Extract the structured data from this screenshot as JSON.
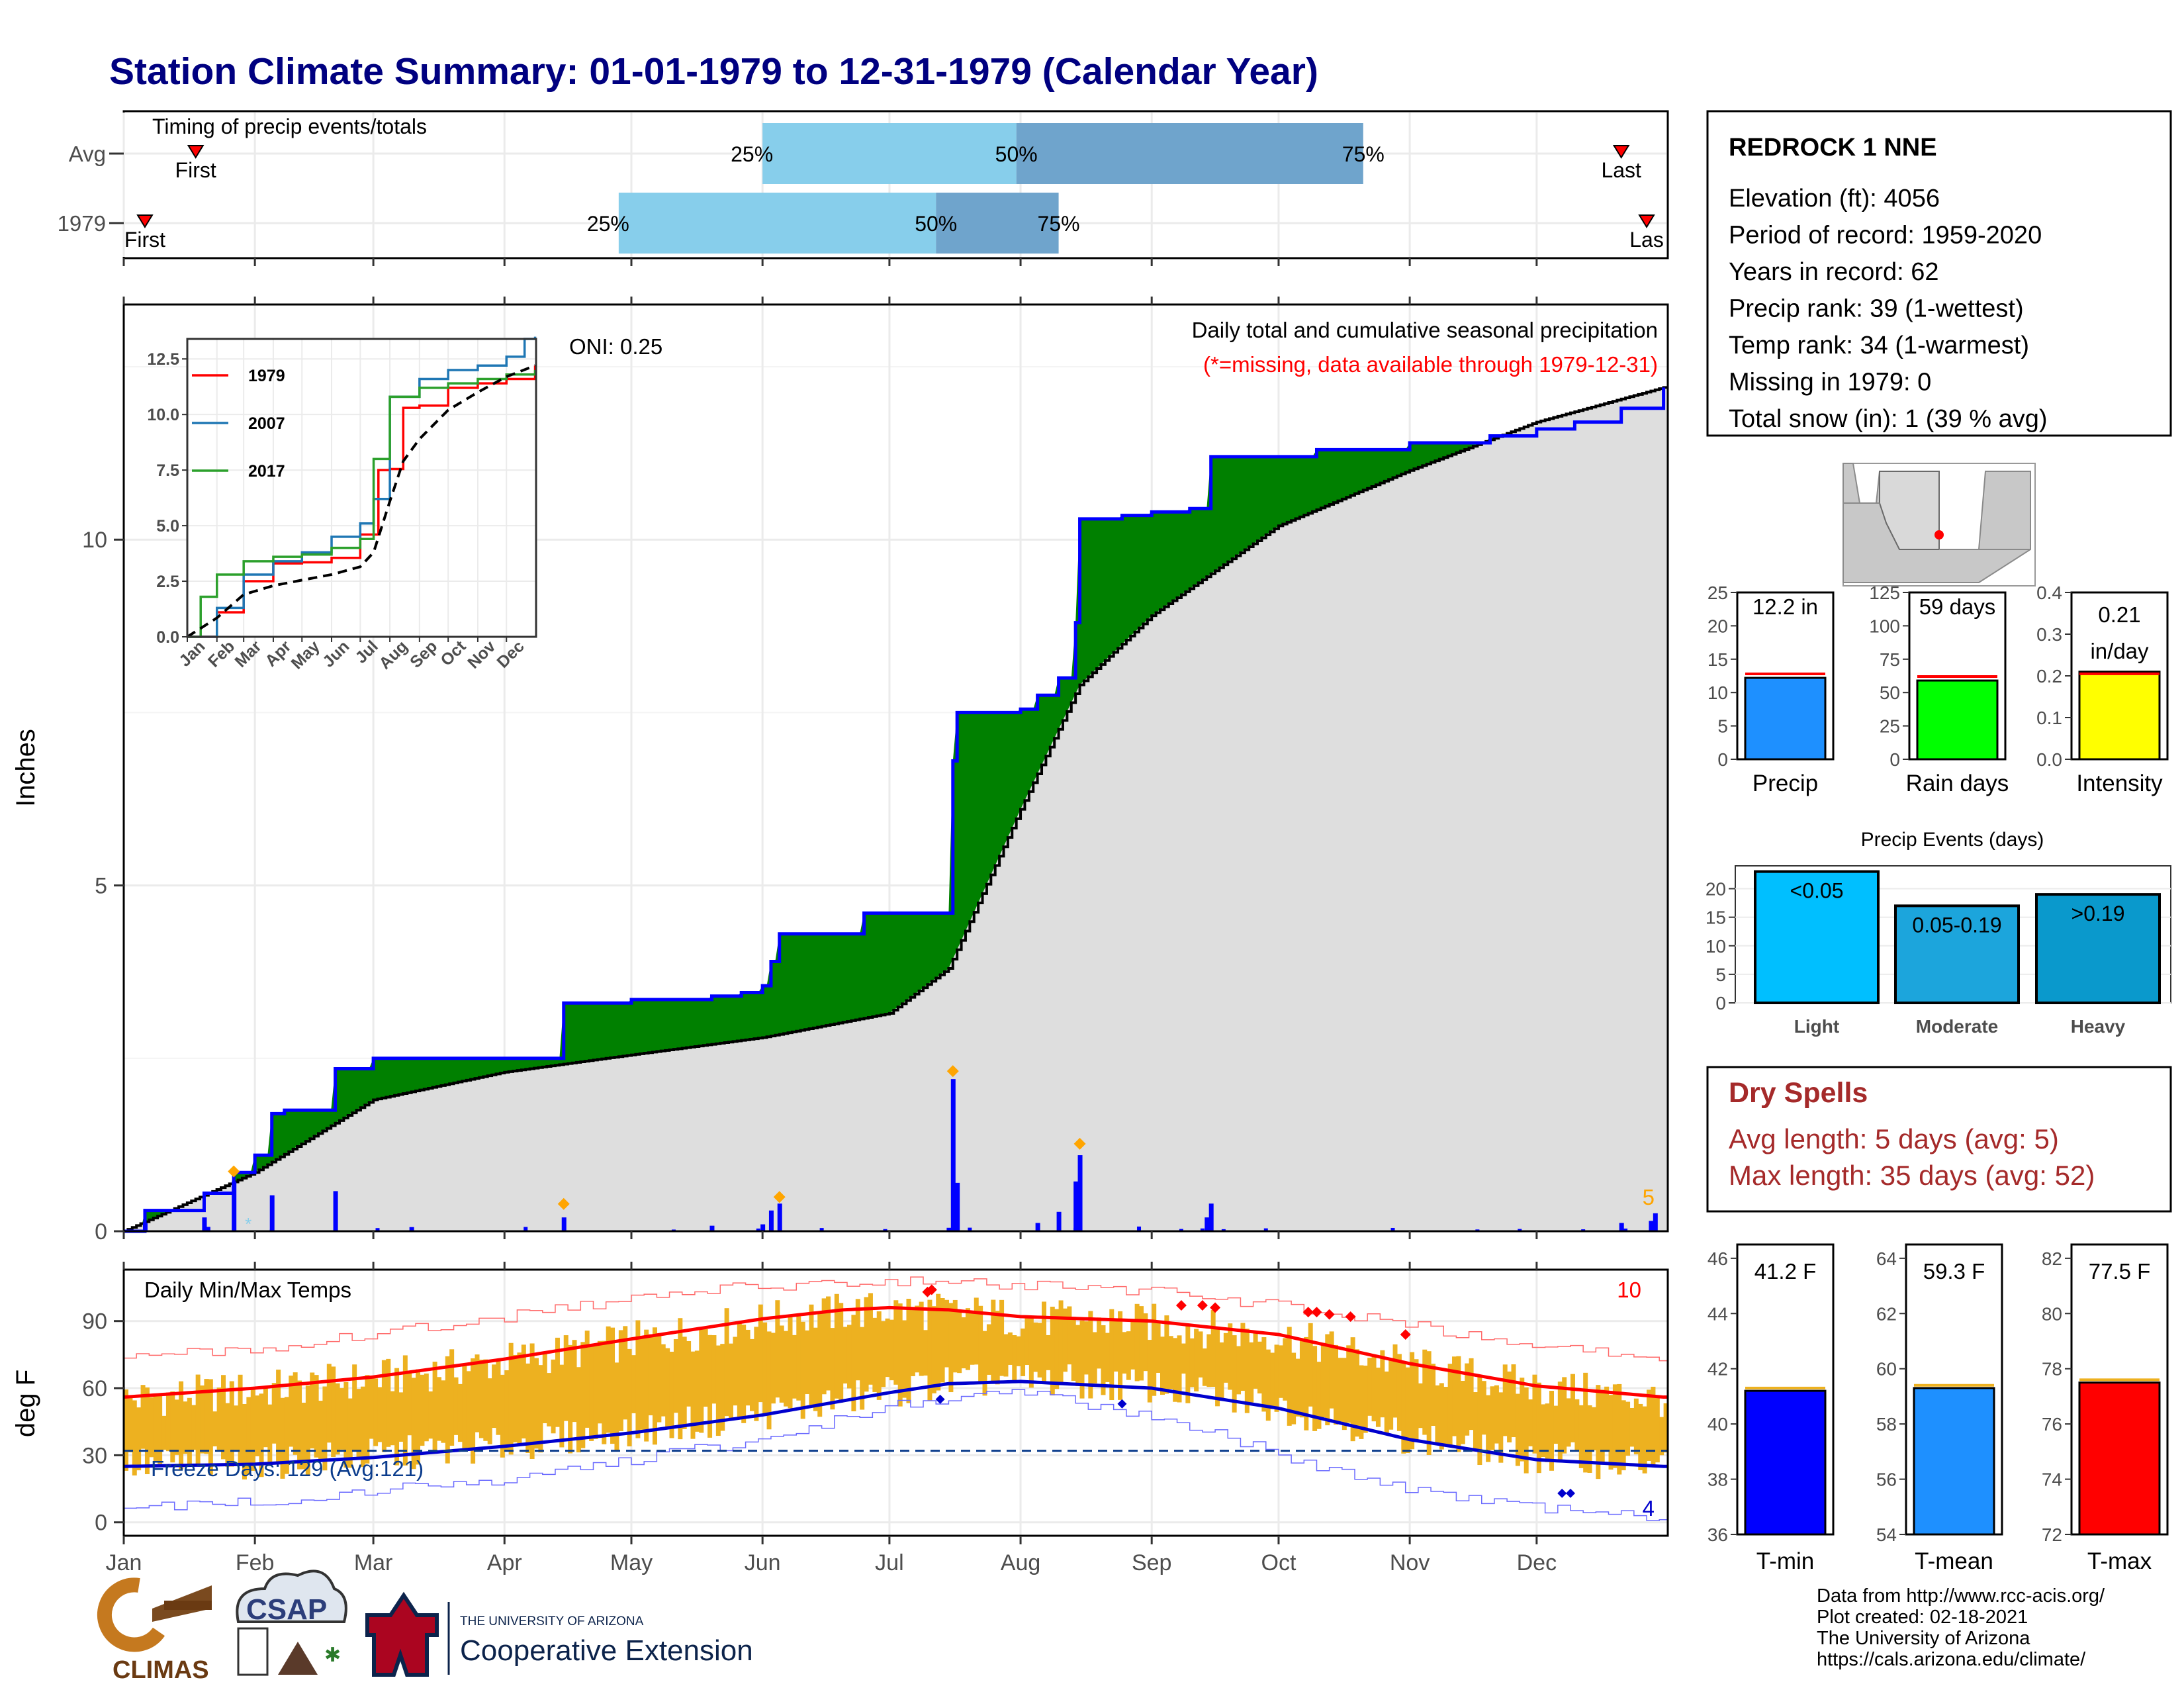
{
  "title": "Station Climate Summary: 01-01-1979 to 12-31-1979 (Calendar Year)",
  "colors": {
    "title": "#000080",
    "fill_above": "#008000",
    "fill_below": "#8B5A1A",
    "cum_line": "#0000FF",
    "grey_fill": "#DEDEDE",
    "daily_bar": "#0000FF",
    "marker": "#FFA500",
    "temp_bar": "#EDB120",
    "tmax_avg": "#FF0000",
    "tmin_avg": "#0000CD",
    "quartile_light": "#87CEEB",
    "quartile_dark": "#6FA4CC",
    "missing_text": "#FF0000",
    "dry_spell": "#A52A2A",
    "precip_bar": "#1E90FF",
    "rain_days_bar": "#00FF00",
    "intensity_bar": "#FFFF00",
    "light": "#00BFFF",
    "moderate": "#1CA5DC",
    "heavy": "#0A99CC",
    "tmin_bar": "#0000FF",
    "tmean_bar": "#1E90FF",
    "tmax_bar": "#FF0000"
  },
  "timing": {
    "label": "Timing of precip events/totals",
    "rows": [
      {
        "name": "Avg",
        "first_label": "First",
        "last_label": "Last",
        "q25": "2000-06-01",
        "q50": "2000-07-31",
        "q75": "2000-10-21",
        "first": "2000-01-18",
        "last": "2000-12-21"
      },
      {
        "name": "1979",
        "first_label": "First",
        "last_label": "Las",
        "q25": "2000-04-28",
        "q50": "2000-07-12",
        "q75": "2000-08-10",
        "first": "2000-01-06",
        "last": "2000-12-27"
      }
    ],
    "q25_label": "25%",
    "q50_label": "50%",
    "q75_label": "75%"
  },
  "precip_panel": {
    "ylabel": "Inches",
    "oni": "ONI: 0.25",
    "title": "Daily total and cumulative seasonal precipitation",
    "missing_note": "(*=missing, data available through 1979-12-31)",
    "count_label": "5",
    "yticks": [
      "0",
      "5",
      "10"
    ]
  },
  "inset": {
    "yticks": [
      "0.0",
      "2.5",
      "5.0",
      "7.5",
      "10.0",
      "12.5"
    ],
    "months": [
      "Jan",
      "Feb",
      "Mar",
      "Apr",
      "May",
      "Jun",
      "Jul",
      "Aug",
      "Sep",
      "Oct",
      "Nov",
      "Dec"
    ],
    "legend": [
      {
        "name": "1979",
        "color": "#FF0000"
      },
      {
        "name": "2007",
        "color": "#1F77B4"
      },
      {
        "name": "2017",
        "color": "#2CA02C"
      }
    ]
  },
  "temp_panel": {
    "ylabel": "deg F",
    "title": "Daily Min/Max Temps",
    "freeze": "Freeze Days: 129 (Avg:121)",
    "count_max": "10",
    "count_min": "4",
    "yticks": [
      "0",
      "30",
      "60",
      "90"
    ]
  },
  "months": [
    "Jan",
    "Feb",
    "Mar",
    "Apr",
    "May",
    "Jun",
    "Jul",
    "Aug",
    "Sep",
    "Oct",
    "Nov",
    "Dec"
  ],
  "station": {
    "name": "REDROCK 1 NNE",
    "lines": [
      "Elevation (ft): 4056",
      "Period of record: 1959-2020",
      "Years in record: 62",
      "Precip rank: 39 (1-wettest)",
      "Temp rank: 34 (1-warmest)",
      "Missing in 1979: 0",
      "Total snow (in): 1 (39 % avg)"
    ]
  },
  "mini_bars": [
    {
      "label": "Precip",
      "value": 12.2,
      "avg": 12.8,
      "text1": "12.2 in",
      "text2": "",
      "ymax": 25,
      "yticks": [
        "0",
        "5",
        "10",
        "15",
        "20",
        "25"
      ],
      "tickvals": [
        0,
        5,
        10,
        15,
        20,
        25
      ],
      "color": "#1E90FF"
    },
    {
      "label": "Rain days",
      "value": 59,
      "avg": 62,
      "text1": "59 days",
      "text2": "",
      "ymax": 125,
      "yticks": [
        "0",
        "25",
        "50",
        "75",
        "100",
        "125"
      ],
      "tickvals": [
        0,
        25,
        50,
        75,
        100,
        125
      ],
      "color": "#00FF00"
    },
    {
      "label": "Intensity",
      "value": 0.21,
      "avg": 0.205,
      "text1": "0.21",
      "text2": "in/day",
      "ymax": 0.4,
      "yticks": [
        "0.0",
        "0.1",
        "0.2",
        "0.3",
        "0.4"
      ],
      "tickvals": [
        0,
        0.1,
        0.2,
        0.3,
        0.4
      ],
      "color": "#FFFF00"
    }
  ],
  "events": {
    "title": "Precip Events (days)",
    "yticks": [
      "0",
      "5",
      "10",
      "15",
      "20"
    ],
    "bars": [
      {
        "label": "Light",
        "text": "<0.05",
        "value": 23,
        "color": "#00BFFF"
      },
      {
        "label": "Moderate",
        "text": "0.05-0.19",
        "value": 17,
        "color": "#1CA5DC"
      },
      {
        "label": "Heavy",
        "text": ">0.19",
        "value": 19,
        "color": "#0A99CC"
      }
    ]
  },
  "dry_spells": {
    "title": "Dry Spells",
    "avg": "Avg length: 5 days (avg: 5)",
    "max": "Max length: 35 days (avg: 52)"
  },
  "temp_bars": [
    {
      "label": "T-min",
      "value": 41.2,
      "avg": 41.3,
      "text": "41.2 F",
      "ymin": 36,
      "ymax": 46.5,
      "yticks": [
        "36",
        "38",
        "40",
        "42",
        "44",
        "46"
      ],
      "tickvals": [
        36,
        38,
        40,
        42,
        44,
        46
      ],
      "color": "#0000FF"
    },
    {
      "label": "T-mean",
      "value": 59.3,
      "avg": 59.4,
      "text": "59.3 F",
      "ymin": 54,
      "ymax": 64.5,
      "yticks": [
        "54",
        "56",
        "58",
        "60",
        "62",
        "64"
      ],
      "tickvals": [
        54,
        56,
        58,
        60,
        62,
        64
      ],
      "color": "#1E90FF"
    },
    {
      "label": "T-max",
      "value": 77.5,
      "avg": 77.6,
      "text": "77.5 F",
      "ymin": 72,
      "ymax": 82.5,
      "yticks": [
        "72",
        "74",
        "76",
        "78",
        "80",
        "82"
      ],
      "tickvals": [
        72,
        74,
        76,
        78,
        80,
        82
      ],
      "color": "#FF0000"
    }
  ],
  "footer": {
    "lines": [
      "Data from http://www.rcc-acis.org/",
      "Plot created: 02-18-2021",
      "The University of Arizona",
      "https://cals.arizona.edu/climate/"
    ],
    "logo_climas": "CLIMAS",
    "logo_csap": "CSAP",
    "ua_small": "THE UNIVERSITY OF ARIZONA",
    "ua_big": "Cooperative Extension"
  },
  "chart_data": [
    {
      "type": "area",
      "title": "Daily total and cumulative seasonal precipitation",
      "ylabel": "Inches",
      "ylim": [
        0,
        13.4
      ],
      "series": [
        {
          "name": "1979",
          "x": [
            "01-01",
            "01-06",
            "01-20",
            "01-27",
            "02-01",
            "02-05",
            "02-08",
            "02-20",
            "03-01",
            "04-15",
            "05-01",
            "05-20",
            "05-27",
            "06-01",
            "06-03",
            "06-05",
            "06-12",
            "06-25",
            "07-15",
            "07-16",
            "07-17",
            "07-25",
            "08-01",
            "08-05",
            "08-10",
            "08-14",
            "08-15",
            "08-25",
            "09-01",
            "09-10",
            "09-15",
            "10-01",
            "10-10",
            "11-01",
            "11-20",
            "12-01",
            "12-10",
            "12-21",
            "12-31"
          ],
          "values": [
            0,
            0.3,
            0.55,
            0.85,
            1.1,
            1.7,
            1.75,
            2.35,
            2.5,
            3.3,
            3.35,
            3.4,
            3.45,
            3.55,
            3.9,
            4.3,
            4.3,
            4.6,
            4.6,
            6.8,
            7.5,
            7.5,
            7.55,
            7.75,
            8.0,
            8.8,
            10.3,
            10.35,
            10.4,
            10.45,
            11.2,
            11.2,
            11.3,
            11.4,
            11.5,
            11.6,
            11.7,
            11.9,
            12.2
          ]
        },
        {
          "name": "Average",
          "x": [
            "01-01",
            "02-01",
            "03-01",
            "04-01",
            "05-01",
            "06-01",
            "07-01",
            "07-15",
            "08-01",
            "08-15",
            "09-01",
            "10-01",
            "11-01",
            "12-01",
            "12-31"
          ],
          "values": [
            0,
            0.85,
            1.9,
            2.3,
            2.55,
            2.8,
            3.15,
            3.8,
            6.1,
            7.9,
            8.9,
            10.2,
            11.0,
            11.7,
            12.2
          ]
        }
      ],
      "daily_totals": {
        "x": [
          "01-06",
          "01-20",
          "01-27",
          "02-05",
          "02-20",
          "03-10",
          "04-15",
          "05-20",
          "06-01",
          "06-03",
          "06-05",
          "07-15",
          "07-16",
          "07-17",
          "08-05",
          "08-10",
          "08-14",
          "08-15",
          "09-14",
          "09-15",
          "12-21",
          "12-28",
          "12-29"
        ],
        "values": [
          0.12,
          0.2,
          0.72,
          0.52,
          0.58,
          0.06,
          0.2,
          0.08,
          0.1,
          0.3,
          0.4,
          0.05,
          2.2,
          0.7,
          0.12,
          0.28,
          0.72,
          1.1,
          0.2,
          0.4,
          0.12,
          0.15,
          0.26
        ]
      }
    },
    {
      "type": "line",
      "title": "",
      "months": [
        "Jan",
        "Feb",
        "Mar",
        "Apr",
        "May",
        "Jun",
        "Jul",
        "Aug",
        "Sep",
        "Oct",
        "Nov",
        "Dec"
      ],
      "series": [
        {
          "name": "1979",
          "x": [
            "01-01",
            "02-01",
            "03-01",
            "04-01",
            "05-01",
            "06-01",
            "07-01",
            "07-15",
            "07-20",
            "08-01",
            "08-15",
            "09-01",
            "10-01",
            "11-01",
            "12-01",
            "12-31"
          ],
          "values": [
            0,
            1.1,
            2.5,
            3.3,
            3.35,
            3.55,
            4.6,
            4.6,
            7.5,
            7.55,
            10.3,
            10.4,
            11.2,
            11.4,
            11.6,
            12.2
          ]
        },
        {
          "name": "2007",
          "x": [
            "01-01",
            "02-01",
            "03-01",
            "04-01",
            "05-01",
            "06-01",
            "07-01",
            "07-15",
            "08-01",
            "09-01",
            "10-01",
            "11-01",
            "12-01",
            "12-20",
            "12-31"
          ],
          "values": [
            0,
            1.3,
            2.8,
            3.4,
            3.8,
            4.5,
            5.1,
            6.2,
            10.8,
            11.6,
            12.0,
            12.2,
            12.6,
            13.4,
            13.5
          ]
        },
        {
          "name": "2017",
          "x": [
            "01-01",
            "01-15",
            "02-01",
            "03-01",
            "04-01",
            "05-01",
            "06-01",
            "07-01",
            "07-15",
            "08-01",
            "09-01",
            "10-01",
            "11-01",
            "12-01",
            "12-31"
          ],
          "values": [
            0,
            1.8,
            2.8,
            3.4,
            3.6,
            3.7,
            4.0,
            4.4,
            8.0,
            10.8,
            11.2,
            11.4,
            11.6,
            11.8,
            12.0
          ]
        },
        {
          "name": "Average",
          "x": [
            "01-01",
            "02-01",
            "03-01",
            "04-01",
            "05-01",
            "06-01",
            "07-01",
            "07-15",
            "08-01",
            "08-15",
            "09-01",
            "10-01",
            "11-01",
            "12-01",
            "12-31"
          ],
          "values": [
            0,
            0.85,
            1.9,
            2.3,
            2.55,
            2.8,
            3.15,
            3.8,
            6.1,
            7.9,
            8.9,
            10.2,
            11.0,
            11.7,
            12.2
          ]
        }
      ],
      "ylim": [
        0,
        13.4
      ]
    },
    {
      "type": "line",
      "title": "Daily Min/Max Temps",
      "ylabel": "deg F",
      "ylim": [
        -6,
        113
      ],
      "series": [
        {
          "name": "Avg Tmax",
          "x": [
            "01-01",
            "02-01",
            "03-01",
            "04-01",
            "05-01",
            "06-01",
            "06-20",
            "07-01",
            "07-15",
            "08-01",
            "09-01",
            "10-01",
            "11-01",
            "12-01",
            "12-31"
          ],
          "values": [
            56,
            60,
            65,
            73,
            82,
            91,
            95,
            96,
            95,
            92,
            90,
            84,
            71,
            61,
            56
          ]
        },
        {
          "name": "Avg Tmin",
          "x": [
            "01-01",
            "02-01",
            "03-01",
            "04-01",
            "05-01",
            "06-01",
            "07-01",
            "07-15",
            "08-01",
            "09-01",
            "10-01",
            "11-01",
            "12-01",
            "12-31"
          ],
          "values": [
            25,
            26,
            29,
            34,
            40,
            48,
            58,
            62,
            63,
            60,
            51,
            37,
            28,
            25
          ]
        },
        {
          "name": "Record high",
          "x": [
            "01-01",
            "02-01",
            "03-01",
            "04-01",
            "05-01",
            "06-01",
            "07-01",
            "08-01",
            "09-01",
            "10-01",
            "11-01",
            "12-01",
            "12-31"
          ],
          "values": [
            73,
            78,
            84,
            92,
            100,
            106,
            108,
            106,
            103,
            97,
            88,
            78,
            74
          ]
        },
        {
          "name": "Record low",
          "x": [
            "01-01",
            "02-01",
            "03-01",
            "04-01",
            "05-01",
            "06-01",
            "07-01",
            "08-01",
            "09-01",
            "10-01",
            "11-01",
            "12-01",
            "12-31"
          ],
          "values": [
            6,
            9,
            14,
            19,
            28,
            37,
            52,
            58,
            48,
            30,
            14,
            6,
            2
          ]
        }
      ],
      "hline": 32
    }
  ]
}
